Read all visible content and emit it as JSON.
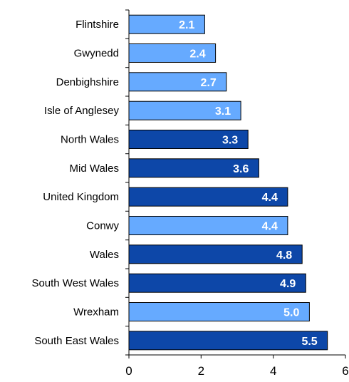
{
  "chart_data": {
    "type": "bar",
    "orientation": "horizontal",
    "title": "",
    "xlabel": "",
    "ylabel": "",
    "xlim": [
      0,
      6
    ],
    "x_ticks": [
      0,
      2,
      4,
      6
    ],
    "grid": false,
    "categories": [
      "Flintshire",
      "Gwynedd",
      "Denbighshire",
      "Isle of Anglesey",
      "North Wales",
      "Mid Wales",
      "United Kingdom",
      "Conwy",
      "Wales",
      "South West Wales",
      "Wrexham",
      "South East Wales"
    ],
    "values": [
      2.1,
      2.4,
      2.7,
      3.1,
      3.3,
      3.6,
      4.4,
      4.4,
      4.8,
      4.9,
      5.0,
      5.5
    ],
    "data_labels": [
      "2.1",
      "2.4",
      "2.7",
      "3.1",
      "3.3",
      "3.6",
      "4.4",
      "4.4",
      "4.8",
      "4.9",
      "5.0",
      "5.5"
    ],
    "bar_kind": [
      "county",
      "county",
      "county",
      "county",
      "region",
      "region",
      "region",
      "county",
      "region",
      "region",
      "county",
      "region"
    ],
    "colors": {
      "county": "#66aaff",
      "region": "#0d47a8",
      "bar_border": "#000000",
      "axis": "#000000"
    }
  }
}
